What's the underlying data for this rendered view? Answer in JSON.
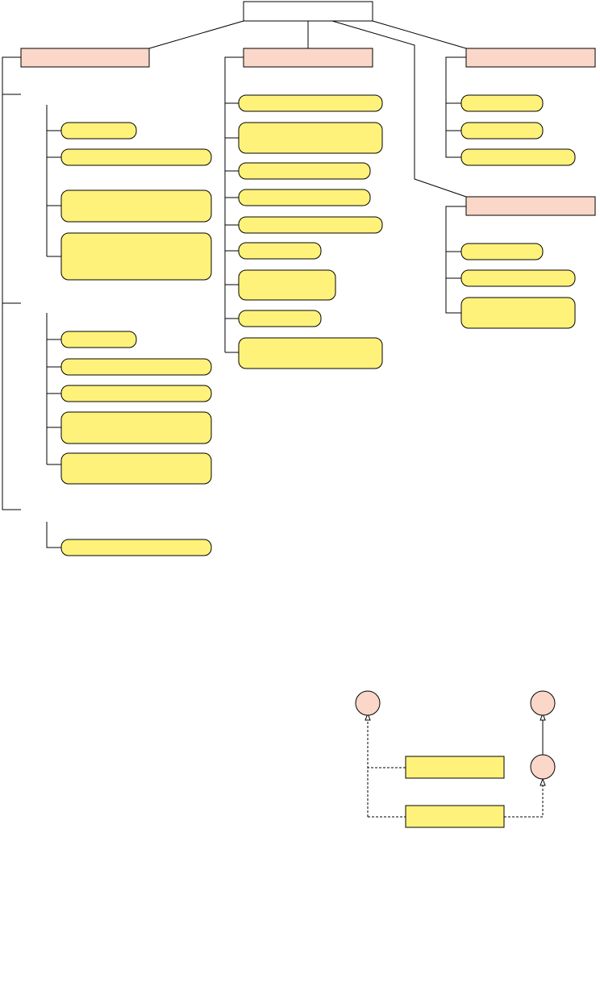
{
  "diagram": {
    "title": "",
    "root_label": "",
    "categories": [
      "",
      "",
      "",
      ""
    ],
    "legend": {
      "nodes": [
        "",
        "",
        ""
      ],
      "boxes": [
        "",
        ""
      ]
    }
  },
  "colors": {
    "category_fill": "#fad7c8",
    "item_fill": "#fff27a",
    "root_fill": "#ffffff",
    "stroke": "#000000"
  }
}
